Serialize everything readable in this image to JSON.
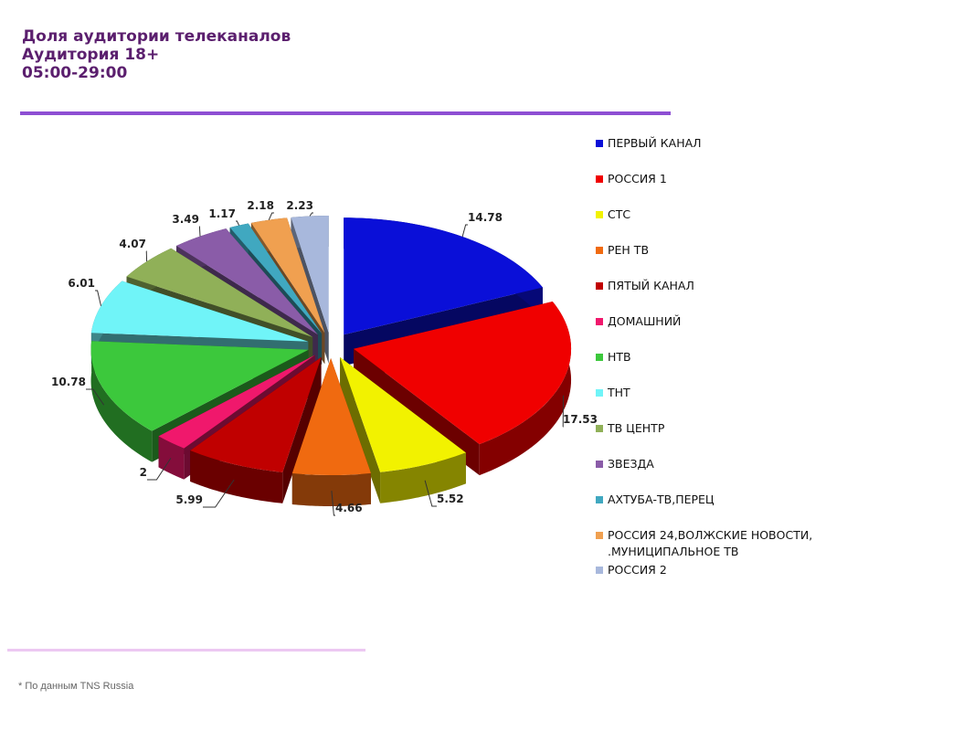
{
  "header": {
    "title_line1": "Доля аудитории телеканалов",
    "title_line2": "Аудитория 18+",
    "title_line3": "05:00-29:00"
  },
  "footnote": "* По данным TNS Russia",
  "chart_data": {
    "type": "pie",
    "title": "Доля аудитории телеканалов",
    "legend_position": "right",
    "series": [
      {
        "name": "ПЕРВЫЙ КАНАЛ",
        "value": 14.78,
        "label": "14.78",
        "color": "#0a0fd8"
      },
      {
        "name": "РОССИЯ 1",
        "value": 17.53,
        "label": "17.53",
        "color": "#f00000"
      },
      {
        "name": "СТС",
        "value": 5.52,
        "label": "5.52",
        "color": "#f2f200"
      },
      {
        "name": "РЕН ТВ",
        "value": 4.66,
        "label": "4.66",
        "color": "#f06a10"
      },
      {
        "name": "ПЯТЫЙ КАНАЛ",
        "value": 5.99,
        "label": "5.99",
        "color": "#c00000"
      },
      {
        "name": "ДОМАШНИЙ",
        "value": 2,
        "label": "2",
        "color": "#f0186c"
      },
      {
        "name": "НТВ",
        "value": 10.78,
        "label": "10.78",
        "color": "#3cc83c"
      },
      {
        "name": "ТНТ",
        "value": 6.01,
        "label": "6.01",
        "color": "#70f4f8"
      },
      {
        "name": "ТВ ЦЕНТР",
        "value": 4.07,
        "label": "4.07",
        "color": "#90b058"
      },
      {
        "name": "ЗВЕЗДА",
        "value": 3.49,
        "label": "3.49",
        "color": "#8a5ca8"
      },
      {
        "name": "АХТУБА-ТВ,ПЕРЕЦ",
        "value": 1.17,
        "label": "1.17",
        "color": "#40a8c0"
      },
      {
        "name": "РОССИЯ 24,ВОЛЖСКИЕ НОВОСТИ,\n.МУНИЦИПАЛЬНОЕ ТВ",
        "value": 2.18,
        "label": "2.18",
        "color": "#f0a050"
      },
      {
        "name": "РОССИЯ 2",
        "value": 2.23,
        "label": "2.23",
        "color": "#a8b8dc"
      }
    ]
  }
}
